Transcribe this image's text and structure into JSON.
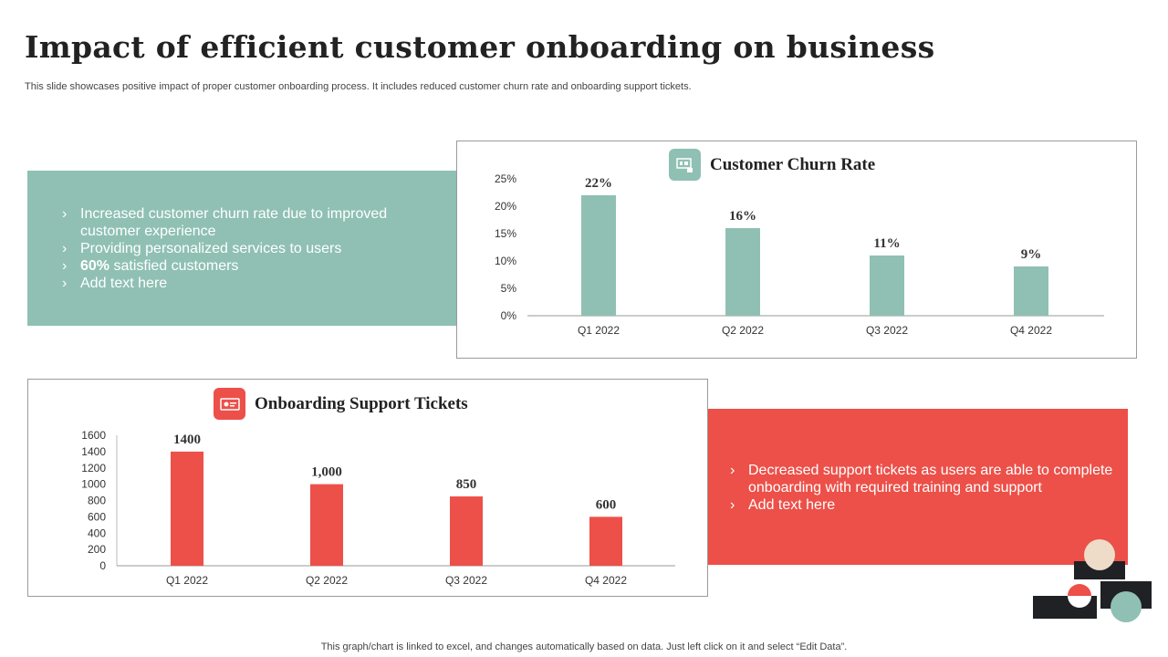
{
  "header": {
    "title": "Impact of efficient customer onboarding on business",
    "subtitle": "This slide showcases positive impact of proper customer onboarding process. It includes reduced customer churn rate and onboarding support tickets."
  },
  "teal_panel": {
    "bullets": [
      {
        "text": "Increased customer churn rate due to improved customer experience"
      },
      {
        "text": "Providing personalized services to users"
      },
      {
        "bold": "60%",
        "text": " satisfied customers"
      },
      {
        "text": "Add text here"
      }
    ]
  },
  "red_panel": {
    "bullets": [
      {
        "text": "Decreased support tickets as users are able to complete onboarding with required training and support"
      },
      {
        "text": "Add text here"
      }
    ]
  },
  "bullet_glyph": "›",
  "footer": "This graph/chart is linked to excel,  and changes automatically based on data. Just left click on it and select “Edit Data”.",
  "colors": {
    "teal": "#8fc0b3",
    "red": "#ec5049",
    "dark": "#1f2124",
    "beige": "#eedcc8"
  },
  "chart_data": [
    {
      "type": "bar",
      "title": "Customer Churn Rate",
      "icon": "chart-board-icon",
      "categories": [
        "Q1 2022",
        "Q2 2022",
        "Q3 2022",
        "Q4 2022"
      ],
      "values": [
        22,
        16,
        11,
        9
      ],
      "data_labels": [
        "22%",
        "16%",
        "11%",
        "9%"
      ],
      "ylim": [
        0,
        25
      ],
      "yticks": [
        "0%",
        "5%",
        "10%",
        "15%",
        "20%",
        "25%"
      ],
      "ytick_values": [
        0,
        5,
        10,
        15,
        20,
        25
      ],
      "grid": false,
      "color": "#8fc0b3"
    },
    {
      "type": "bar",
      "title": "Onboarding Support Tickets",
      "icon": "ticket-icon",
      "categories": [
        "Q1 2022",
        "Q2 2022",
        "Q3 2022",
        "Q4 2022"
      ],
      "values": [
        1400,
        1000,
        850,
        600
      ],
      "data_labels": [
        "1400",
        "1,000",
        "850",
        "600"
      ],
      "ylim": [
        0,
        1600
      ],
      "yticks": [
        "0",
        "200",
        "400",
        "600",
        "800",
        "1000",
        "1200",
        "1400",
        "1600"
      ],
      "ytick_values": [
        0,
        200,
        400,
        600,
        800,
        1000,
        1200,
        1400,
        1600
      ],
      "grid": false,
      "color": "#ec5049"
    }
  ]
}
